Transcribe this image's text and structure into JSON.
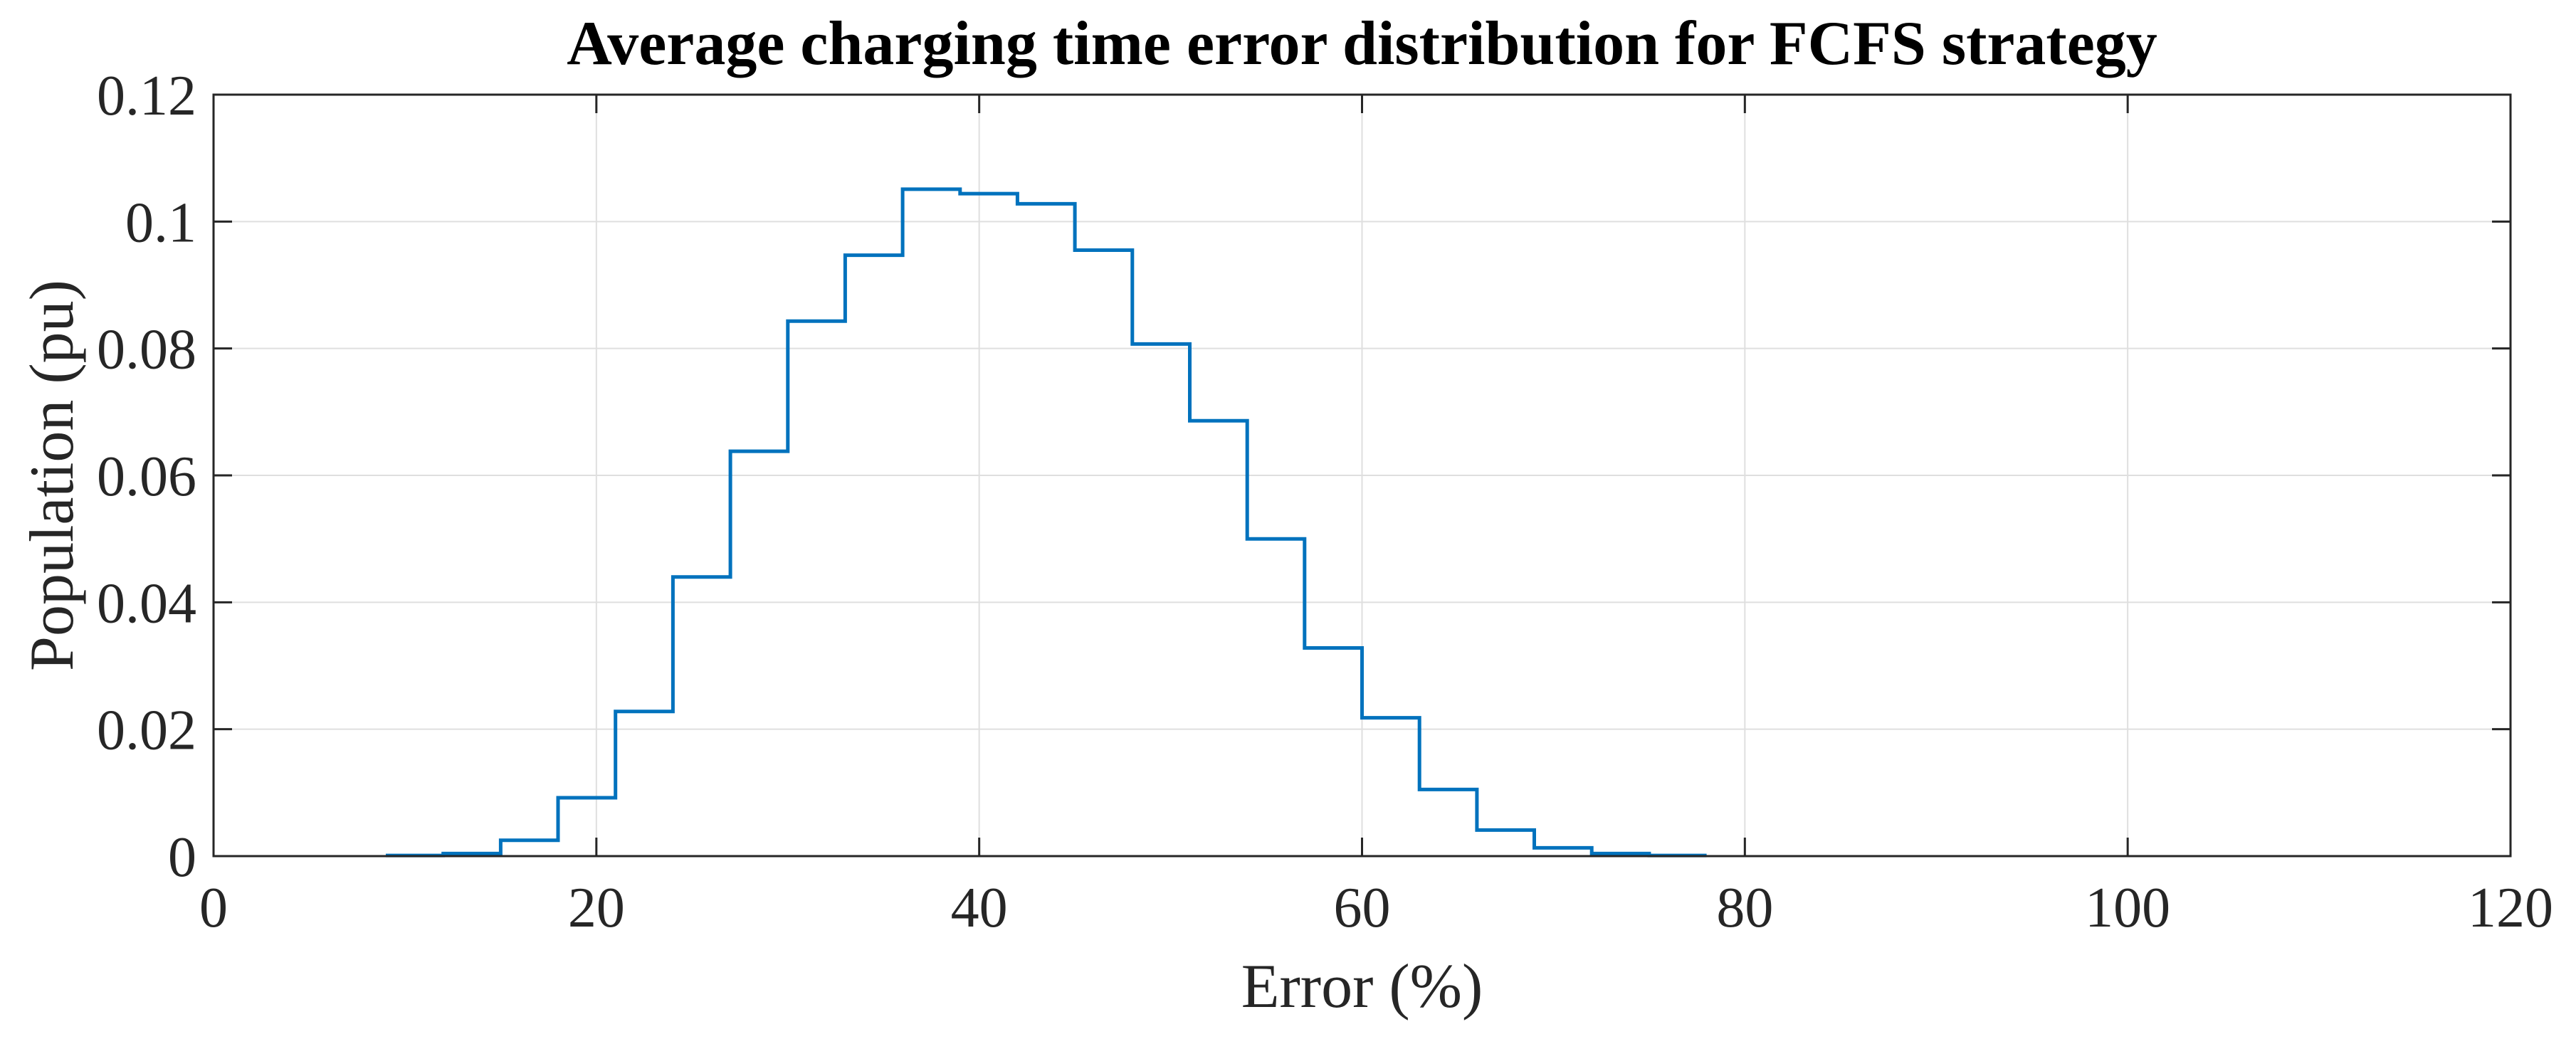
{
  "chart_data": {
    "type": "line",
    "subtype": "stairs",
    "title": "Average charging time error distribution for FCFS strategy",
    "xlabel": "Error (%)",
    "ylabel": "Population (pu)",
    "xlim": [
      0,
      120
    ],
    "ylim": [
      0,
      0.12
    ],
    "xticks": [
      0,
      20,
      40,
      60,
      80,
      100,
      120
    ],
    "xtick_labels": [
      "0",
      "20",
      "40",
      "60",
      "80",
      "100",
      "120"
    ],
    "yticks": [
      0,
      0.02,
      0.04,
      0.06,
      0.08,
      0.1,
      0.12
    ],
    "ytick_labels": [
      "0",
      "0.02",
      "0.04",
      "0.06",
      "0.08",
      "0.1",
      "0.12"
    ],
    "grid": true,
    "box": true,
    "series": [
      {
        "color": "#0072BD",
        "bin_edges": [
          9,
          12,
          15,
          18,
          21,
          24,
          27,
          30,
          33,
          36,
          39,
          42,
          45,
          48,
          51,
          54,
          57,
          60,
          63,
          66,
          69,
          72,
          75,
          78
        ],
        "values": [
          0.0001,
          0.0004,
          0.0025,
          0.0092,
          0.0228,
          0.044,
          0.0638,
          0.0843,
          0.0947,
          0.1051,
          0.1044,
          0.1028,
          0.0955,
          0.0807,
          0.0686,
          0.05,
          0.0328,
          0.0218,
          0.0105,
          0.0041,
          0.0013,
          0.0004,
          0.0001
        ]
      }
    ]
  }
}
